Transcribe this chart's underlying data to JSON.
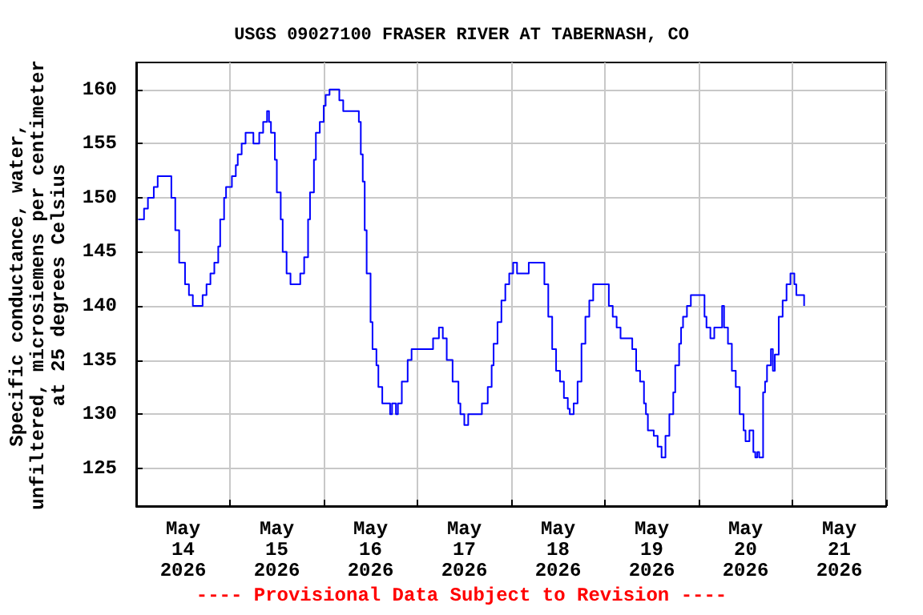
{
  "chart_data": {
    "type": "step",
    "title": "USGS 09027100 FRASER RIVER AT TABERNASH, CO",
    "ylabel": "Specific conductance, water,\nunfiltered, microsiemens per centimeter\nat 25 degrees Celsius",
    "annotations": [
      "---- Provisional Data Subject to Revision ----"
    ],
    "xlim": [
      "2026-05-14T00:00",
      "2026-05-22T00:00"
    ],
    "xticks": [
      {
        "value": "2026-05-14T00:00",
        "label": null
      },
      {
        "value": "2026-05-14T12:00",
        "label": "May\n14\n2026"
      },
      {
        "value": "2026-05-15T00:00",
        "label": null
      },
      {
        "value": "2026-05-15T12:00",
        "label": "May\n15\n2026"
      },
      {
        "value": "2026-05-16T00:00",
        "label": null
      },
      {
        "value": "2026-05-16T12:00",
        "label": "May\n16\n2026"
      },
      {
        "value": "2026-05-17T00:00",
        "label": null
      },
      {
        "value": "2026-05-17T12:00",
        "label": "May\n17\n2026"
      },
      {
        "value": "2026-05-18T00:00",
        "label": null
      },
      {
        "value": "2026-05-18T12:00",
        "label": "May\n18\n2026"
      },
      {
        "value": "2026-05-19T00:00",
        "label": null
      },
      {
        "value": "2026-05-19T12:00",
        "label": "May\n19\n2026"
      },
      {
        "value": "2026-05-20T00:00",
        "label": null
      },
      {
        "value": "2026-05-20T12:00",
        "label": "May\n20\n2026"
      },
      {
        "value": "2026-05-21T00:00",
        "label": null
      },
      {
        "value": "2026-05-21T12:00",
        "label": "May\n21\n2026"
      },
      {
        "value": "2026-05-22T00:00",
        "label": null
      }
    ],
    "ylim": [
      121.5,
      162.5
    ],
    "yticks": [
      125,
      130,
      135,
      140,
      145,
      150,
      155,
      160
    ],
    "grid": true,
    "series": [
      {
        "color": "#0000ff",
        "x": [
          "2026-05-14T00:30",
          "2026-05-14T02:00",
          "2026-05-14T03:00",
          "2026-05-14T04:30",
          "2026-05-14T05:30",
          "2026-05-14T07:30",
          "2026-05-14T09:00",
          "2026-05-14T10:00",
          "2026-05-14T11:00",
          "2026-05-14T12:30",
          "2026-05-14T13:30",
          "2026-05-14T14:30",
          "2026-05-14T16:00",
          "2026-05-14T17:00",
          "2026-05-14T18:00",
          "2026-05-14T19:00",
          "2026-05-14T20:00",
          "2026-05-14T21:00",
          "2026-05-14T21:30",
          "2026-05-14T22:30",
          "2026-05-14T23:00",
          "2026-05-15T00:30",
          "2026-05-15T01:30",
          "2026-05-15T02:00",
          "2026-05-15T03:00",
          "2026-05-15T04:00",
          "2026-05-15T05:30",
          "2026-05-15T06:00",
          "2026-05-15T06:30",
          "2026-05-15T07:30",
          "2026-05-15T08:30",
          "2026-05-15T09:30",
          "2026-05-15T10:00",
          "2026-05-15T10:30",
          "2026-05-15T11:30",
          "2026-05-15T12:00",
          "2026-05-15T13:00",
          "2026-05-15T13:30",
          "2026-05-15T14:30",
          "2026-05-15T15:30",
          "2026-05-15T17:30",
          "2026-05-15T18:00",
          "2026-05-15T19:00",
          "2026-05-15T20:00",
          "2026-05-15T20:30",
          "2026-05-15T21:30",
          "2026-05-15T22:00",
          "2026-05-15T23:00",
          "2026-05-16T00:00",
          "2026-05-16T00:30",
          "2026-05-16T01:30",
          "2026-05-16T03:00",
          "2026-05-16T04:00",
          "2026-05-16T05:00",
          "2026-05-16T08:30",
          "2026-05-16T09:00",
          "2026-05-16T09:30",
          "2026-05-16T10:00",
          "2026-05-16T10:30",
          "2026-05-16T11:00",
          "2026-05-16T12:00",
          "2026-05-16T12:30",
          "2026-05-16T13:30",
          "2026-05-16T14:00",
          "2026-05-16T15:00",
          "2026-05-16T16:30",
          "2026-05-16T17:00",
          "2026-05-16T17:30",
          "2026-05-16T18:30",
          "2026-05-16T19:00",
          "2026-05-16T20:00",
          "2026-05-16T21:30",
          "2026-05-16T22:30",
          "2026-05-17T03:00",
          "2026-05-17T04:00",
          "2026-05-17T05:30",
          "2026-05-17T06:30",
          "2026-05-17T07:30",
          "2026-05-17T09:00",
          "2026-05-17T10:30",
          "2026-05-17T11:00",
          "2026-05-17T12:00",
          "2026-05-17T13:00",
          "2026-05-17T16:00",
          "2026-05-17T16:30",
          "2026-05-17T18:00",
          "2026-05-17T19:00",
          "2026-05-17T19:30",
          "2026-05-17T20:30",
          "2026-05-17T21:30",
          "2026-05-17T22:30",
          "2026-05-17T23:30",
          "2026-05-18T00:30",
          "2026-05-18T01:30",
          "2026-05-18T04:00",
          "2026-05-18T04:30",
          "2026-05-18T08:00",
          "2026-05-18T08:30",
          "2026-05-18T09:30",
          "2026-05-18T10:30",
          "2026-05-18T11:30",
          "2026-05-18T12:30",
          "2026-05-18T13:30",
          "2026-05-18T14:30",
          "2026-05-18T15:00",
          "2026-05-18T16:00",
          "2026-05-18T17:00",
          "2026-05-18T18:00",
          "2026-05-18T19:00",
          "2026-05-18T20:00",
          "2026-05-18T21:00",
          "2026-05-19T00:30",
          "2026-05-19T01:00",
          "2026-05-19T02:00",
          "2026-05-19T03:00",
          "2026-05-19T04:00",
          "2026-05-19T06:00",
          "2026-05-19T07:00",
          "2026-05-19T08:00",
          "2026-05-19T09:00",
          "2026-05-19T10:00",
          "2026-05-19T10:30",
          "2026-05-19T11:00",
          "2026-05-19T12:30",
          "2026-05-19T13:30",
          "2026-05-19T14:30",
          "2026-05-19T15:30",
          "2026-05-19T16:30",
          "2026-05-19T17:30",
          "2026-05-19T18:00",
          "2026-05-19T19:00",
          "2026-05-19T19:30",
          "2026-05-19T20:00",
          "2026-05-19T21:00",
          "2026-05-19T22:00",
          "2026-05-20T00:30",
          "2026-05-20T01:30",
          "2026-05-20T02:00",
          "2026-05-20T03:00",
          "2026-05-20T04:00",
          "2026-05-20T05:30",
          "2026-05-20T06:00",
          "2026-05-20T06:30",
          "2026-05-20T07:30",
          "2026-05-20T08:30",
          "2026-05-20T09:30",
          "2026-05-20T10:30",
          "2026-05-20T11:30",
          "2026-05-20T12:00",
          "2026-05-20T13:00",
          "2026-05-20T14:00",
          "2026-05-20T14:30",
          "2026-05-20T15:00",
          "2026-05-20T15:30",
          "2026-05-20T16:30",
          "2026-05-20T17:00",
          "2026-05-20T17:30",
          "2026-05-20T18:30",
          "2026-05-20T19:00",
          "2026-05-20T19:30",
          "2026-05-20T20:30",
          "2026-05-20T21:00",
          "2026-05-20T21:30",
          "2026-05-20T22:30",
          "2026-05-20T23:30",
          "2026-05-21T00:30",
          "2026-05-21T01:00",
          "2026-05-21T02:00",
          "2026-05-21T03:00"
        ],
        "values": [
          148,
          149,
          150,
          151,
          152,
          152,
          150,
          147,
          144,
          142,
          141,
          140,
          140,
          141,
          142,
          143,
          144,
          145.5,
          148,
          150,
          151,
          152,
          153,
          154,
          155,
          156,
          156,
          155,
          155,
          156,
          157,
          158,
          157,
          156,
          153.5,
          150.5,
          148,
          145,
          143,
          142,
          142,
          143,
          144.5,
          148,
          150.5,
          153.5,
          156,
          157,
          158.5,
          159.5,
          160,
          160,
          159,
          158,
          158,
          157,
          154,
          151.5,
          147,
          143,
          138.5,
          136,
          134.5,
          132.5,
          131,
          131,
          130,
          131,
          130,
          131,
          133,
          135,
          136,
          136,
          137,
          138,
          137,
          135,
          133,
          131,
          130,
          129,
          130,
          130,
          131,
          132.5,
          134.5,
          136.5,
          138.5,
          140.5,
          142,
          143,
          144,
          143,
          143,
          144,
          144,
          142,
          139,
          136,
          134,
          133,
          131.5,
          130.5,
          130,
          131,
          133,
          136.5,
          139,
          140.5,
          142,
          142,
          140,
          139,
          138,
          137,
          137,
          136,
          134,
          133,
          131,
          130,
          128.5,
          128,
          127,
          126,
          128,
          130,
          132,
          134.5,
          136.5,
          138,
          139,
          140,
          141,
          141,
          139,
          138,
          137,
          138,
          138,
          140,
          138,
          136.5,
          134,
          132.5,
          130,
          128.5,
          127.5,
          128.5,
          126.5,
          126,
          126.5,
          126,
          132,
          133,
          134.5,
          136,
          134,
          135.5,
          139,
          139,
          140.5,
          142,
          143,
          142,
          141,
          141,
          140
        ]
      }
    ]
  }
}
